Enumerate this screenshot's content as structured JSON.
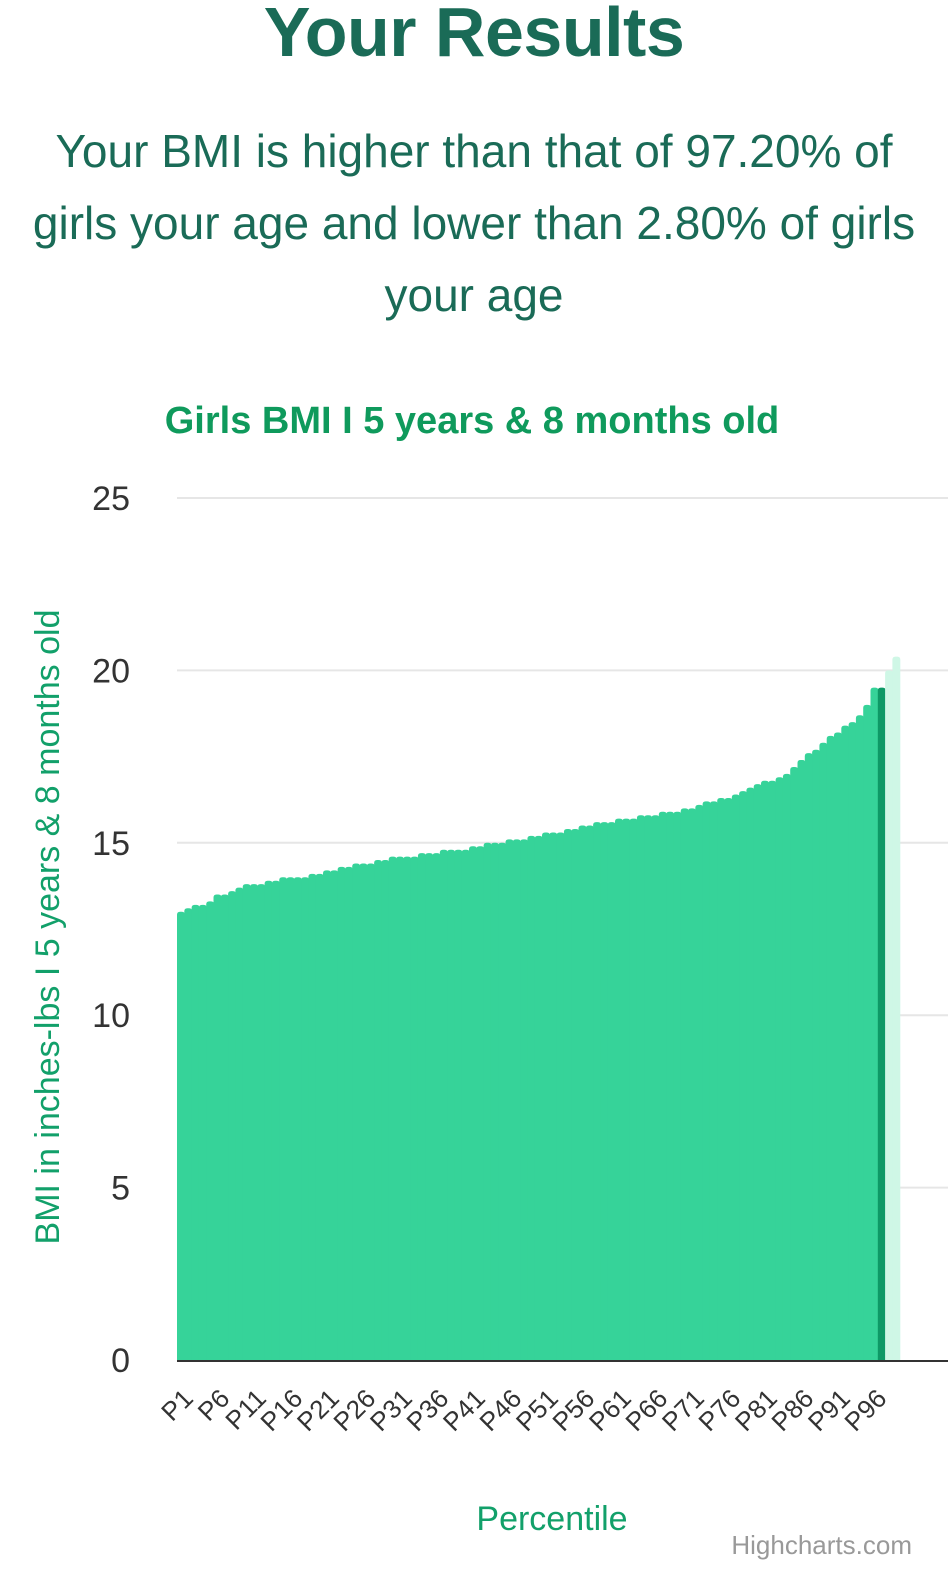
{
  "header": {
    "title": "Your Results",
    "result_line_1": "Your BMI is higher than that of 97.20% of",
    "result_line_2": "girls your age and lower than 2.80% of girls",
    "result_line_3": "your age"
  },
  "colors": {
    "title": "#1a6b57",
    "chart_title": "#0f9a5c",
    "axis_label": "#12a06a",
    "bar": "#36d399",
    "bar_highlight": "#0e9966",
    "bar_above": "#cff7e6",
    "grid": "#e6e6e6",
    "axis_line": "#333333",
    "tick_text": "#333333",
    "credits": "#999999"
  },
  "chart_data": {
    "type": "bar",
    "title": "Girls BMI I 5 years & 8 months old",
    "xlabel": "Percentile",
    "ylabel": "BMI in inches-lbs I 5 years & 8 months old",
    "ylim": [
      0,
      25
    ],
    "yticks": [
      0,
      5,
      10,
      15,
      20,
      25
    ],
    "grid": true,
    "legend": "none",
    "credits": "Highcharts.com",
    "highlighted_category": "P97",
    "categories": [
      "P1",
      "P2",
      "P3",
      "P4",
      "P5",
      "P6",
      "P7",
      "P8",
      "P9",
      "P10",
      "P11",
      "P12",
      "P13",
      "P14",
      "P15",
      "P16",
      "P17",
      "P18",
      "P19",
      "P20",
      "P21",
      "P22",
      "P23",
      "P24",
      "P25",
      "P26",
      "P27",
      "P28",
      "P29",
      "P30",
      "P31",
      "P32",
      "P33",
      "P34",
      "P35",
      "P36",
      "P37",
      "P38",
      "P39",
      "P40",
      "P41",
      "P42",
      "P43",
      "P44",
      "P45",
      "P46",
      "P47",
      "P48",
      "P49",
      "P50",
      "P51",
      "P52",
      "P53",
      "P54",
      "P55",
      "P56",
      "P57",
      "P58",
      "P59",
      "P60",
      "P61",
      "P62",
      "P63",
      "P64",
      "P65",
      "P66",
      "P67",
      "P68",
      "P69",
      "P70",
      "P71",
      "P72",
      "P73",
      "P74",
      "P75",
      "P76",
      "P77",
      "P78",
      "P79",
      "P80",
      "P81",
      "P82",
      "P83",
      "P84",
      "P85",
      "P86",
      "P87",
      "P88",
      "P89",
      "P90",
      "P91",
      "P92",
      "P93",
      "P94",
      "P95",
      "P96",
      "P97",
      "P98",
      "P99"
    ],
    "tick_labels": [
      "P1",
      "P6",
      "P11",
      "P16",
      "P21",
      "P26",
      "P31",
      "P36",
      "P41",
      "P46",
      "P51",
      "P56",
      "P61",
      "P66",
      "P71",
      "P76",
      "P81",
      "P86",
      "P91",
      "P96"
    ],
    "values": [
      13.0,
      13.1,
      13.2,
      13.2,
      13.3,
      13.5,
      13.5,
      13.6,
      13.7,
      13.8,
      13.8,
      13.8,
      13.9,
      13.9,
      14.0,
      14.0,
      14.0,
      14.0,
      14.1,
      14.1,
      14.2,
      14.2,
      14.3,
      14.3,
      14.4,
      14.4,
      14.4,
      14.5,
      14.5,
      14.6,
      14.6,
      14.6,
      14.6,
      14.7,
      14.7,
      14.7,
      14.8,
      14.8,
      14.8,
      14.8,
      14.9,
      14.9,
      15.0,
      15.0,
      15.0,
      15.1,
      15.1,
      15.1,
      15.2,
      15.2,
      15.3,
      15.3,
      15.3,
      15.4,
      15.4,
      15.5,
      15.5,
      15.6,
      15.6,
      15.6,
      15.7,
      15.7,
      15.7,
      15.8,
      15.8,
      15.8,
      15.9,
      15.9,
      15.9,
      16.0,
      16.0,
      16.1,
      16.2,
      16.2,
      16.3,
      16.3,
      16.4,
      16.5,
      16.6,
      16.7,
      16.8,
      16.8,
      16.9,
      17.0,
      17.2,
      17.4,
      17.6,
      17.7,
      17.9,
      18.1,
      18.2,
      18.4,
      18.5,
      18.7,
      19.0,
      19.5,
      19.5,
      20.0,
      20.4
    ]
  }
}
